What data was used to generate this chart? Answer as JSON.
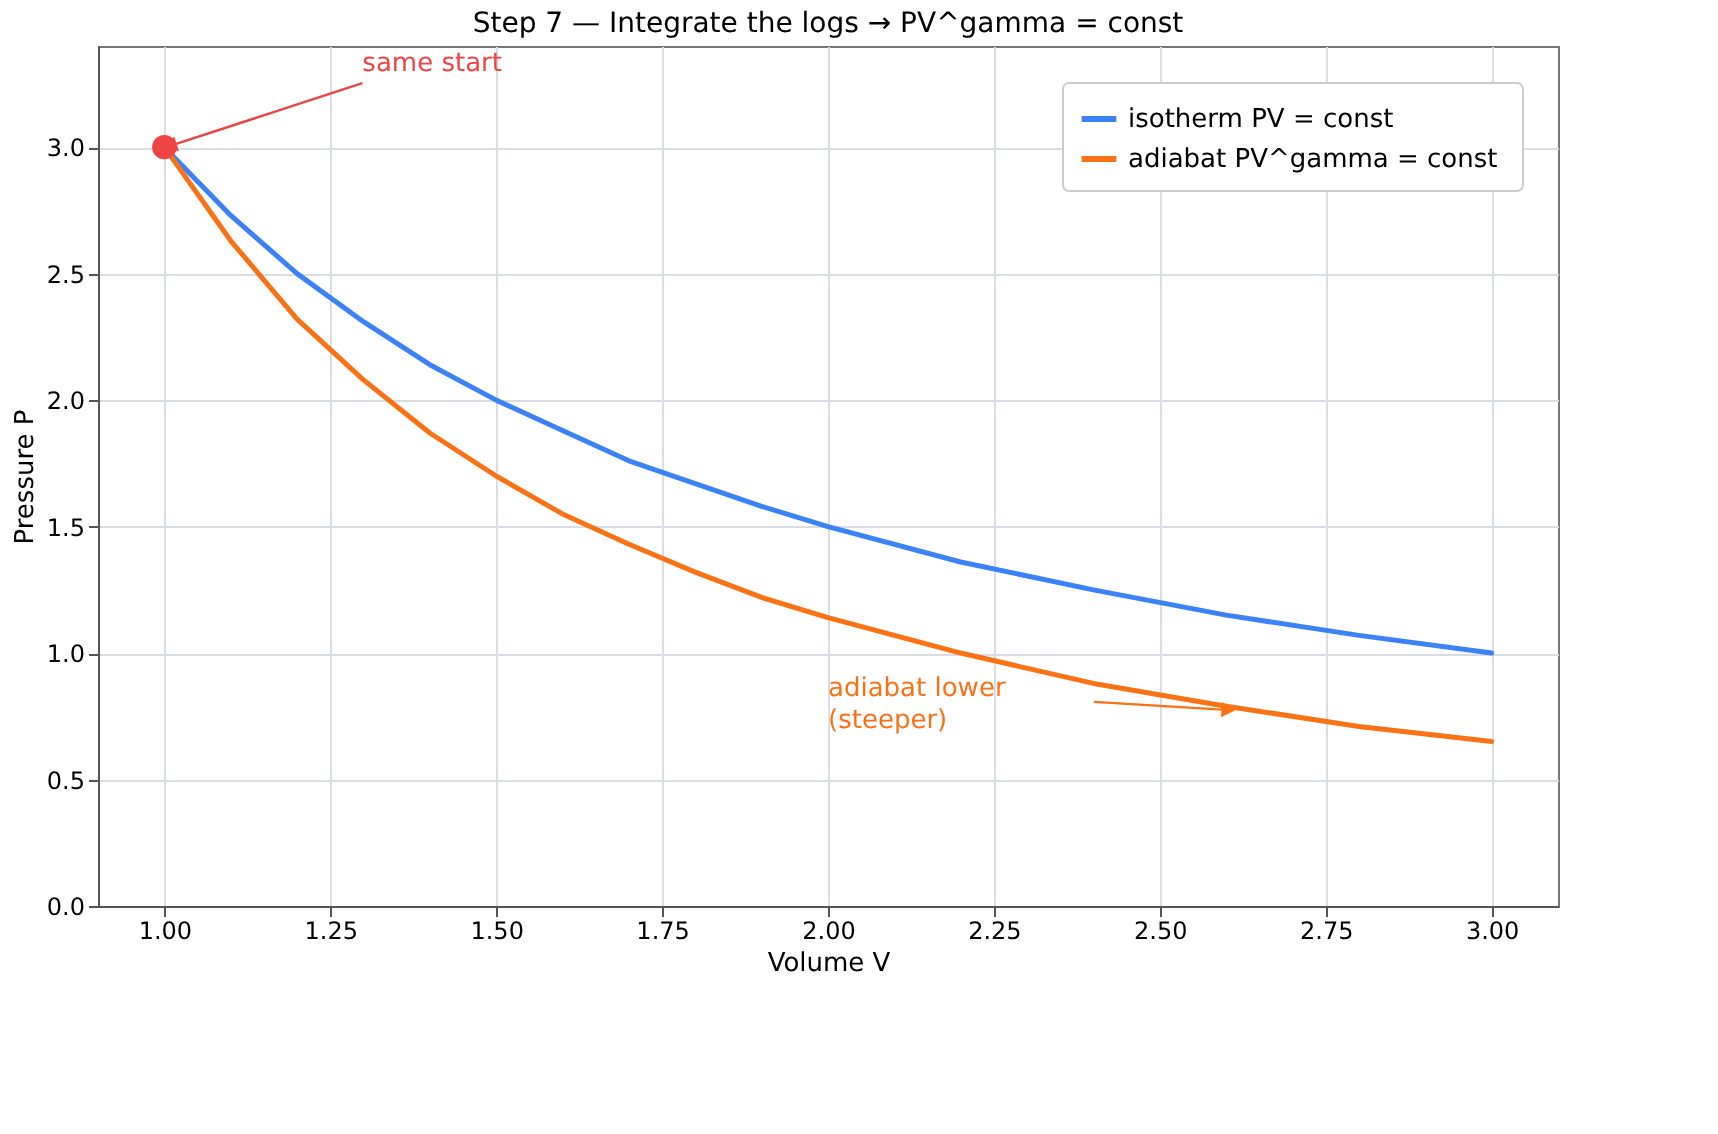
{
  "chart_data": {
    "type": "line",
    "title": "Step 7 — Integrate the logs → PV^gamma = const",
    "xlabel": "Volume  V",
    "ylabel": "Pressure  P",
    "xlim": [
      0.9,
      3.1
    ],
    "ylim": [
      0,
      3.4
    ],
    "xticks": [
      {
        "value": 1,
        "label": "1.00"
      },
      {
        "value": 1.25,
        "label": "1.25"
      },
      {
        "value": 1.5,
        "label": "1.50"
      },
      {
        "value": 1.75,
        "label": "1.75"
      },
      {
        "value": 2,
        "label": "2.00"
      },
      {
        "value": 2.25,
        "label": "2.25"
      },
      {
        "value": 2.5,
        "label": "2.50"
      },
      {
        "value": 2.75,
        "label": "2.75"
      },
      {
        "value": 3,
        "label": "3.00"
      }
    ],
    "yticks": [
      {
        "value": 0,
        "label": "0.0"
      },
      {
        "value": 0.5,
        "label": "0.5"
      },
      {
        "value": 1,
        "label": "1.0"
      },
      {
        "value": 1.5,
        "label": "1.5"
      },
      {
        "value": 2,
        "label": "2.0"
      },
      {
        "value": 2.5,
        "label": "2.5"
      },
      {
        "value": 3,
        "label": "3.0"
      }
    ],
    "grid": true,
    "legend": "top right",
    "series": [
      {
        "name": "isotherm  PV = const",
        "color": "#3b82f6",
        "x": [
          1.0,
          1.1,
          1.2,
          1.3,
          1.4,
          1.5,
          1.6,
          1.7,
          1.8,
          1.9,
          2.0,
          2.2,
          2.4,
          2.6,
          2.8,
          3.0
        ],
        "values": [
          3.0,
          2.73,
          2.5,
          2.31,
          2.14,
          2.0,
          1.88,
          1.76,
          1.67,
          1.58,
          1.5,
          1.36,
          1.25,
          1.15,
          1.07,
          1.0
        ]
      },
      {
        "name": "adiabat  PV^gamma = const",
        "color": "#f97316",
        "x": [
          1.0,
          1.1,
          1.2,
          1.3,
          1.4,
          1.5,
          1.6,
          1.7,
          1.8,
          1.9,
          2.0,
          2.2,
          2.4,
          2.6,
          2.8,
          3.0
        ],
        "values": [
          3.0,
          2.63,
          2.32,
          2.08,
          1.87,
          1.7,
          1.55,
          1.43,
          1.32,
          1.22,
          1.14,
          1.0,
          0.88,
          0.79,
          0.71,
          0.65
        ]
      },
      {
        "type": "scatter",
        "color": "#ef4444",
        "x": [
          1.0
        ],
        "values": [
          3.0
        ]
      }
    ],
    "annotations": [
      {
        "text": "same start",
        "x": 1.0,
        "y": 3.0
      },
      "adiabat lower\n(steeper)"
    ]
  }
}
